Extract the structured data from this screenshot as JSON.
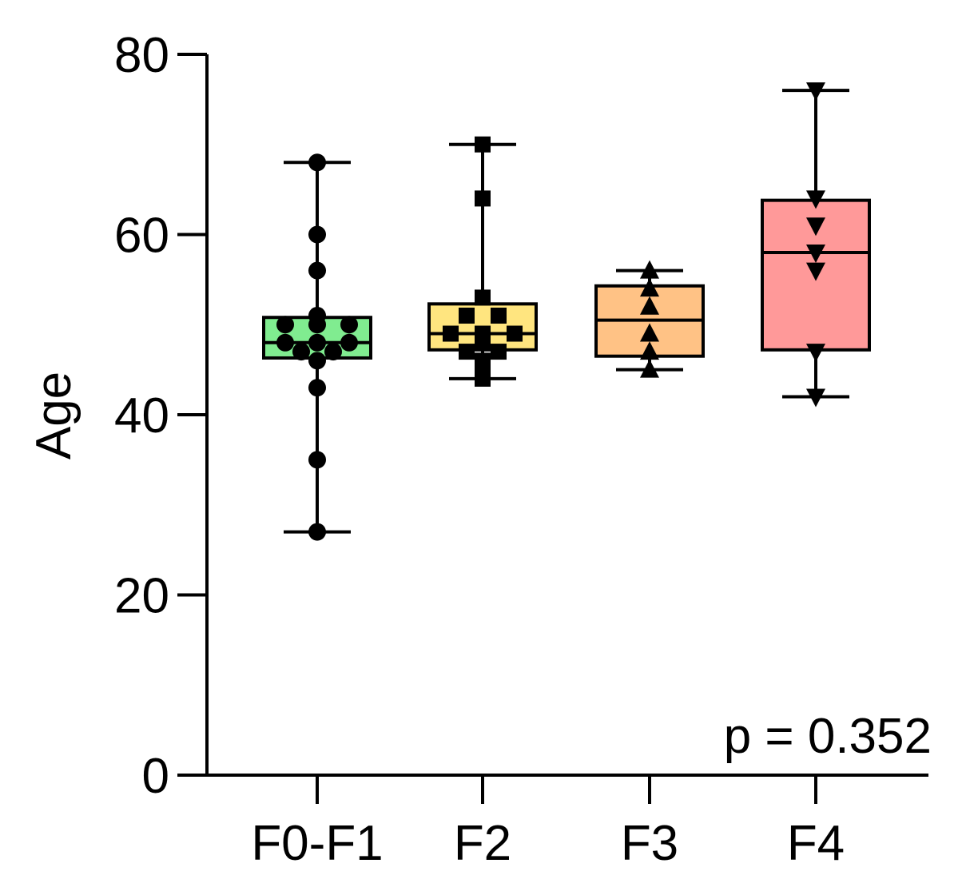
{
  "chart_data": {
    "type": "box",
    "title": "",
    "xlabel": "",
    "ylabel": "Age",
    "ylim": [
      0,
      80
    ],
    "yticks": [
      0,
      20,
      40,
      60,
      80
    ],
    "categories": [
      "F0-F1",
      "F2",
      "F3",
      "F4"
    ],
    "annotation": "p = 0.352",
    "grid": false,
    "legend": "none",
    "groups": [
      {
        "category": "F0-F1",
        "color": "#80ec90",
        "marker": "circle",
        "min": 27,
        "q1": 46.3,
        "median": 48,
        "q3": 50.8,
        "max": 68,
        "points": [
          68,
          60,
          56,
          51,
          50,
          50,
          50,
          48,
          48,
          48,
          47,
          47,
          46,
          43,
          35,
          27
        ]
      },
      {
        "category": "F2",
        "color": "#ffe57f",
        "marker": "square",
        "min": 44,
        "q1": 47.2,
        "median": 49,
        "q3": 52.3,
        "max": 70,
        "points": [
          70,
          64,
          53,
          51,
          51,
          49,
          49,
          49,
          48,
          47,
          47,
          46,
          45,
          44
        ]
      },
      {
        "category": "F3",
        "color": "#ffc285",
        "marker": "triangle-up",
        "min": 45,
        "q1": 46.5,
        "median": 50.5,
        "q3": 54.3,
        "max": 56,
        "points": [
          56,
          54,
          52,
          49,
          47,
          45
        ]
      },
      {
        "category": "F4",
        "color": "#ff9999",
        "marker": "triangle-down",
        "min": 42,
        "q1": 47.2,
        "median": 58,
        "q3": 63.8,
        "max": 76,
        "points": [
          76,
          64,
          61,
          58,
          56,
          47,
          42
        ]
      }
    ]
  }
}
